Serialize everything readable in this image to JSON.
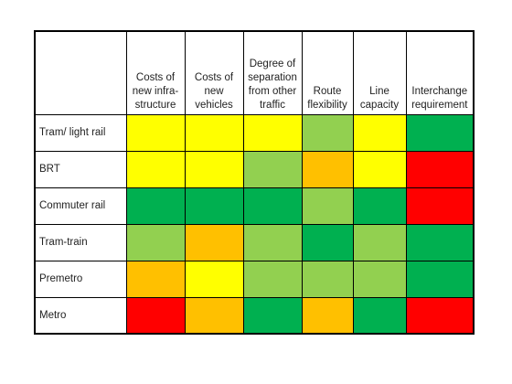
{
  "colors": {
    "high": "#00b050",
    "medium_high": "#92d050",
    "medium": "#ffff00",
    "medium_low": "#ffc000",
    "low": "#ff0000"
  },
  "columns": [
    {
      "label": "Costs of new infra-structure",
      "lines": [
        "Costs of",
        "new infra-",
        "structure"
      ]
    },
    {
      "label": "Costs of new vehicles",
      "lines": [
        "Costs of",
        "new",
        "vehicles"
      ]
    },
    {
      "label": "Degree of separation from other traffic",
      "lines": [
        "Degree of",
        "separation",
        "from other",
        "traffic"
      ]
    },
    {
      "label": "Route flexibility",
      "lines": [
        "Route",
        "flexibility"
      ]
    },
    {
      "label": "Line capacity",
      "lines": [
        "Line",
        "capacity"
      ]
    },
    {
      "label": "Interchange requirement",
      "lines": [
        "Interchange",
        "requirement"
      ]
    }
  ],
  "rows": [
    {
      "label": "Tram/  light rail",
      "ratings": [
        "medium",
        "medium",
        "medium",
        "medium_high",
        "medium",
        "high"
      ]
    },
    {
      "label": "BRT",
      "ratings": [
        "medium",
        "medium",
        "medium_high",
        "medium_low",
        "medium",
        "low"
      ]
    },
    {
      "label": "Commuter rail",
      "ratings": [
        "high",
        "high",
        "high",
        "medium_high",
        "high",
        "low"
      ]
    },
    {
      "label": "Tram-train",
      "ratings": [
        "medium_high",
        "medium_low",
        "medium_high",
        "high",
        "medium_high",
        "high"
      ]
    },
    {
      "label": "Premetro",
      "ratings": [
        "medium_low",
        "medium",
        "medium_high",
        "medium_high",
        "medium_high",
        "high"
      ]
    },
    {
      "label": "Metro",
      "ratings": [
        "low",
        "medium_low",
        "high",
        "medium_low",
        "high",
        "low"
      ]
    }
  ]
}
